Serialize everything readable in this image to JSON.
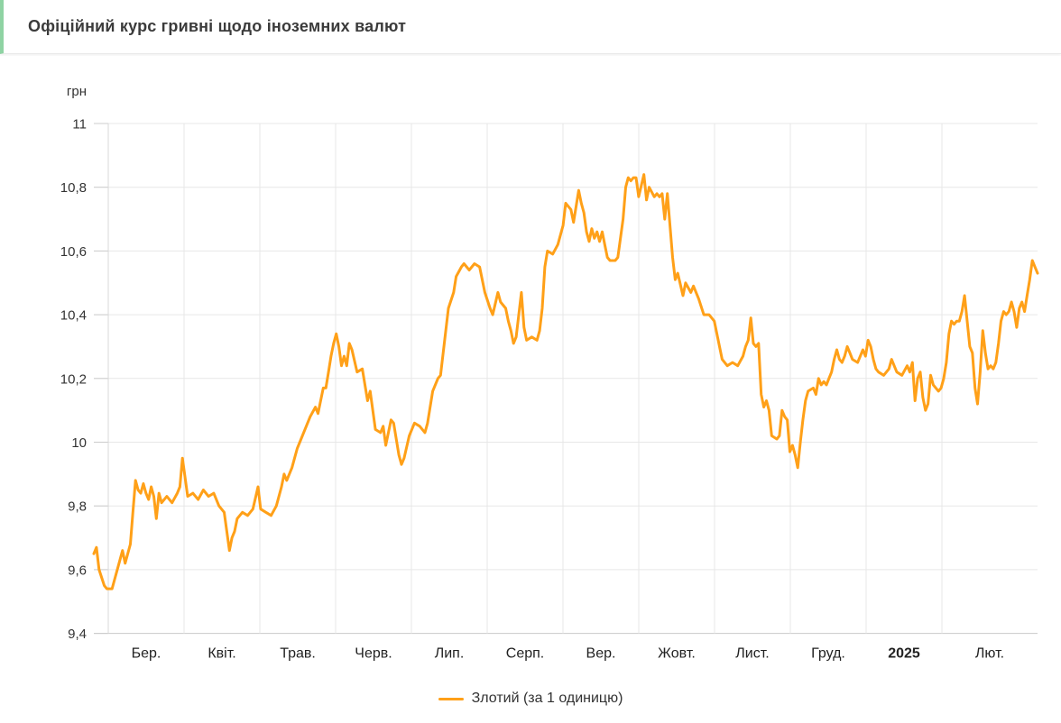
{
  "page": {
    "title": "Офіційний курс гривні щодо іноземних валют"
  },
  "colors": {
    "accent_green": "#8FD3A3",
    "line": "#FFA018",
    "grid": "#e7e7e7",
    "axis": "#cccccc",
    "tick_text": "#333333",
    "month_text": "#222222"
  },
  "chart_data": {
    "type": "line",
    "title": "Офіційний курс гривні щодо іноземних валют",
    "y_axis_title": "грн",
    "xlabel": "",
    "ylabel": "грн",
    "ylim": [
      9.4,
      11
    ],
    "grid": true,
    "legend_position": "bottom",
    "y_ticks": [
      {
        "value": 11,
        "label": "11"
      },
      {
        "value": 10.8,
        "label": "10,8"
      },
      {
        "value": 10.6,
        "label": "10,6"
      },
      {
        "value": 10.4,
        "label": "10,4"
      },
      {
        "value": 10.2,
        "label": "10,2"
      },
      {
        "value": 10,
        "label": "10"
      },
      {
        "value": 9.8,
        "label": "9,8"
      },
      {
        "value": 9.6,
        "label": "9,6"
      },
      {
        "value": 9.4,
        "label": "9,4"
      }
    ],
    "x_ticks": [
      {
        "label": "Бер.",
        "bold": false
      },
      {
        "label": "Квіт.",
        "bold": false
      },
      {
        "label": "Трав.",
        "bold": false
      },
      {
        "label": "Черв.",
        "bold": false
      },
      {
        "label": "Лип.",
        "bold": false
      },
      {
        "label": "Серп.",
        "bold": false
      },
      {
        "label": "Вер.",
        "bold": false
      },
      {
        "label": "Жовт.",
        "bold": false
      },
      {
        "label": "Лист.",
        "bold": false
      },
      {
        "label": "Груд.",
        "bold": false
      },
      {
        "label": "2025",
        "bold": true
      },
      {
        "label": "Лют.",
        "bold": false
      }
    ],
    "x_domain_days": [
      0,
      362
    ],
    "series": [
      {
        "name": "Злотий (за 1 одиницю)",
        "color": "#FFA018",
        "points": [
          [
            0,
            9.65
          ],
          [
            1,
            9.67
          ],
          [
            2,
            9.6
          ],
          [
            4,
            9.55
          ],
          [
            5,
            9.54
          ],
          [
            7,
            9.54
          ],
          [
            8,
            9.57
          ],
          [
            10,
            9.63
          ],
          [
            11,
            9.66
          ],
          [
            12,
            9.62
          ],
          [
            14,
            9.68
          ],
          [
            15,
            9.78
          ],
          [
            16,
            9.88
          ],
          [
            17,
            9.85
          ],
          [
            18,
            9.84
          ],
          [
            19,
            9.87
          ],
          [
            20,
            9.84
          ],
          [
            21,
            9.82
          ],
          [
            22,
            9.86
          ],
          [
            23,
            9.83
          ],
          [
            24,
            9.76
          ],
          [
            25,
            9.84
          ],
          [
            26,
            9.81
          ],
          [
            28,
            9.83
          ],
          [
            30,
            9.81
          ],
          [
            32,
            9.84
          ],
          [
            33,
            9.86
          ],
          [
            34,
            9.95
          ],
          [
            35,
            9.89
          ],
          [
            36,
            9.83
          ],
          [
            38,
            9.84
          ],
          [
            40,
            9.82
          ],
          [
            42,
            9.85
          ],
          [
            44,
            9.83
          ],
          [
            46,
            9.84
          ],
          [
            48,
            9.8
          ],
          [
            50,
            9.78
          ],
          [
            51,
            9.72
          ],
          [
            52,
            9.66
          ],
          [
            53,
            9.7
          ],
          [
            54,
            9.72
          ],
          [
            55,
            9.76
          ],
          [
            56,
            9.77
          ],
          [
            57,
            9.78
          ],
          [
            59,
            9.77
          ],
          [
            61,
            9.79
          ],
          [
            63,
            9.86
          ],
          [
            64,
            9.79
          ],
          [
            66,
            9.78
          ],
          [
            68,
            9.77
          ],
          [
            70,
            9.8
          ],
          [
            72,
            9.86
          ],
          [
            73,
            9.9
          ],
          [
            74,
            9.88
          ],
          [
            76,
            9.92
          ],
          [
            78,
            9.98
          ],
          [
            79,
            10.0
          ],
          [
            81,
            10.04
          ],
          [
            83,
            10.08
          ],
          [
            85,
            10.11
          ],
          [
            86,
            10.09
          ],
          [
            87,
            10.13
          ],
          [
            88,
            10.17
          ],
          [
            89,
            10.17
          ],
          [
            90,
            10.22
          ],
          [
            91,
            10.27
          ],
          [
            92,
            10.31
          ],
          [
            93,
            10.34
          ],
          [
            94,
            10.3
          ],
          [
            95,
            10.24
          ],
          [
            96,
            10.27
          ],
          [
            97,
            10.24
          ],
          [
            98,
            10.31
          ],
          [
            99,
            10.29
          ],
          [
            101,
            10.22
          ],
          [
            103,
            10.23
          ],
          [
            105,
            10.13
          ],
          [
            106,
            10.16
          ],
          [
            108,
            10.04
          ],
          [
            110,
            10.03
          ],
          [
            111,
            10.05
          ],
          [
            112,
            9.99
          ],
          [
            114,
            10.07
          ],
          [
            115,
            10.06
          ],
          [
            117,
            9.96
          ],
          [
            118,
            9.93
          ],
          [
            119,
            9.95
          ],
          [
            121,
            10.02
          ],
          [
            123,
            10.06
          ],
          [
            125,
            10.05
          ],
          [
            127,
            10.03
          ],
          [
            128,
            10.06
          ],
          [
            130,
            10.16
          ],
          [
            132,
            10.2
          ],
          [
            133,
            10.21
          ],
          [
            134,
            10.28
          ],
          [
            136,
            10.42
          ],
          [
            138,
            10.47
          ],
          [
            139,
            10.52
          ],
          [
            141,
            10.55
          ],
          [
            142,
            10.56
          ],
          [
            144,
            10.54
          ],
          [
            146,
            10.56
          ],
          [
            148,
            10.55
          ],
          [
            150,
            10.47
          ],
          [
            152,
            10.42
          ],
          [
            153,
            10.4
          ],
          [
            155,
            10.47
          ],
          [
            156,
            10.44
          ],
          [
            158,
            10.42
          ],
          [
            159,
            10.38
          ],
          [
            160,
            10.35
          ],
          [
            161,
            10.31
          ],
          [
            162,
            10.33
          ],
          [
            164,
            10.47
          ],
          [
            165,
            10.36
          ],
          [
            166,
            10.32
          ],
          [
            168,
            10.33
          ],
          [
            170,
            10.32
          ],
          [
            171,
            10.35
          ],
          [
            172,
            10.42
          ],
          [
            173,
            10.55
          ],
          [
            174,
            10.6
          ],
          [
            176,
            10.59
          ],
          [
            178,
            10.62
          ],
          [
            180,
            10.68
          ],
          [
            181,
            10.75
          ],
          [
            183,
            10.73
          ],
          [
            184,
            10.69
          ],
          [
            186,
            10.79
          ],
          [
            187,
            10.75
          ],
          [
            188,
            10.72
          ],
          [
            189,
            10.66
          ],
          [
            190,
            10.63
          ],
          [
            191,
            10.67
          ],
          [
            192,
            10.64
          ],
          [
            193,
            10.66
          ],
          [
            194,
            10.63
          ],
          [
            195,
            10.66
          ],
          [
            196,
            10.62
          ],
          [
            197,
            10.58
          ],
          [
            198,
            10.57
          ],
          [
            200,
            10.57
          ],
          [
            201,
            10.58
          ],
          [
            202,
            10.64
          ],
          [
            203,
            10.7
          ],
          [
            204,
            10.8
          ],
          [
            205,
            10.83
          ],
          [
            206,
            10.82
          ],
          [
            207,
            10.83
          ],
          [
            208,
            10.83
          ],
          [
            209,
            10.77
          ],
          [
            211,
            10.84
          ],
          [
            212,
            10.76
          ],
          [
            213,
            10.8
          ],
          [
            215,
            10.77
          ],
          [
            216,
            10.78
          ],
          [
            217,
            10.77
          ],
          [
            218,
            10.78
          ],
          [
            219,
            10.7
          ],
          [
            220,
            10.78
          ],
          [
            221,
            10.68
          ],
          [
            222,
            10.58
          ],
          [
            223,
            10.51
          ],
          [
            224,
            10.53
          ],
          [
            226,
            10.46
          ],
          [
            227,
            10.5
          ],
          [
            229,
            10.47
          ],
          [
            230,
            10.49
          ],
          [
            232,
            10.45
          ],
          [
            234,
            10.4
          ],
          [
            236,
            10.4
          ],
          [
            238,
            10.38
          ],
          [
            240,
            10.3
          ],
          [
            241,
            10.26
          ],
          [
            243,
            10.24
          ],
          [
            245,
            10.25
          ],
          [
            247,
            10.24
          ],
          [
            249,
            10.27
          ],
          [
            250,
            10.3
          ],
          [
            251,
            10.32
          ],
          [
            252,
            10.39
          ],
          [
            253,
            10.31
          ],
          [
            254,
            10.3
          ],
          [
            255,
            10.31
          ],
          [
            256,
            10.15
          ],
          [
            257,
            10.11
          ],
          [
            258,
            10.13
          ],
          [
            259,
            10.1
          ],
          [
            260,
            10.02
          ],
          [
            262,
            10.01
          ],
          [
            263,
            10.02
          ],
          [
            264,
            10.1
          ],
          [
            265,
            10.08
          ],
          [
            266,
            10.07
          ],
          [
            267,
            9.97
          ],
          [
            268,
            9.99
          ],
          [
            269,
            9.96
          ],
          [
            270,
            9.92
          ],
          [
            271,
            10.0
          ],
          [
            272,
            10.07
          ],
          [
            273,
            10.13
          ],
          [
            274,
            10.16
          ],
          [
            276,
            10.17
          ],
          [
            277,
            10.15
          ],
          [
            278,
            10.2
          ],
          [
            279,
            10.18
          ],
          [
            280,
            10.19
          ],
          [
            281,
            10.18
          ],
          [
            282,
            10.2
          ],
          [
            283,
            10.22
          ],
          [
            284,
            10.26
          ],
          [
            285,
            10.29
          ],
          [
            286,
            10.26
          ],
          [
            287,
            10.25
          ],
          [
            288,
            10.27
          ],
          [
            289,
            10.3
          ],
          [
            290,
            10.28
          ],
          [
            291,
            10.26
          ],
          [
            293,
            10.25
          ],
          [
            294,
            10.27
          ],
          [
            295,
            10.29
          ],
          [
            296,
            10.27
          ],
          [
            297,
            10.32
          ],
          [
            298,
            10.3
          ],
          [
            299,
            10.26
          ],
          [
            300,
            10.23
          ],
          [
            301,
            10.22
          ],
          [
            303,
            10.21
          ],
          [
            305,
            10.23
          ],
          [
            306,
            10.26
          ],
          [
            307,
            10.24
          ],
          [
            308,
            10.22
          ],
          [
            310,
            10.21
          ],
          [
            312,
            10.24
          ],
          [
            313,
            10.22
          ],
          [
            314,
            10.25
          ],
          [
            315,
            10.13
          ],
          [
            316,
            10.2
          ],
          [
            317,
            10.22
          ],
          [
            318,
            10.14
          ],
          [
            319,
            10.1
          ],
          [
            320,
            10.12
          ],
          [
            321,
            10.21
          ],
          [
            322,
            10.18
          ],
          [
            323,
            10.17
          ],
          [
            324,
            10.16
          ],
          [
            325,
            10.17
          ],
          [
            326,
            10.2
          ],
          [
            327,
            10.25
          ],
          [
            328,
            10.34
          ],
          [
            329,
            10.38
          ],
          [
            330,
            10.37
          ],
          [
            331,
            10.38
          ],
          [
            332,
            10.38
          ],
          [
            333,
            10.41
          ],
          [
            334,
            10.46
          ],
          [
            335,
            10.38
          ],
          [
            336,
            10.3
          ],
          [
            337,
            10.28
          ],
          [
            338,
            10.17
          ],
          [
            339,
            10.12
          ],
          [
            340,
            10.22
          ],
          [
            341,
            10.35
          ],
          [
            342,
            10.28
          ],
          [
            343,
            10.23
          ],
          [
            344,
            10.24
          ],
          [
            345,
            10.23
          ],
          [
            346,
            10.25
          ],
          [
            347,
            10.31
          ],
          [
            348,
            10.38
          ],
          [
            349,
            10.41
          ],
          [
            350,
            10.4
          ],
          [
            351,
            10.41
          ],
          [
            352,
            10.44
          ],
          [
            353,
            10.41
          ],
          [
            354,
            10.36
          ],
          [
            355,
            10.42
          ],
          [
            356,
            10.44
          ],
          [
            357,
            10.41
          ],
          [
            358,
            10.46
          ],
          [
            359,
            10.51
          ],
          [
            360,
            10.57
          ],
          [
            361,
            10.55
          ],
          [
            362,
            10.53
          ]
        ]
      }
    ]
  },
  "legend": {
    "label": "Злотий (за 1 одиницю)"
  }
}
